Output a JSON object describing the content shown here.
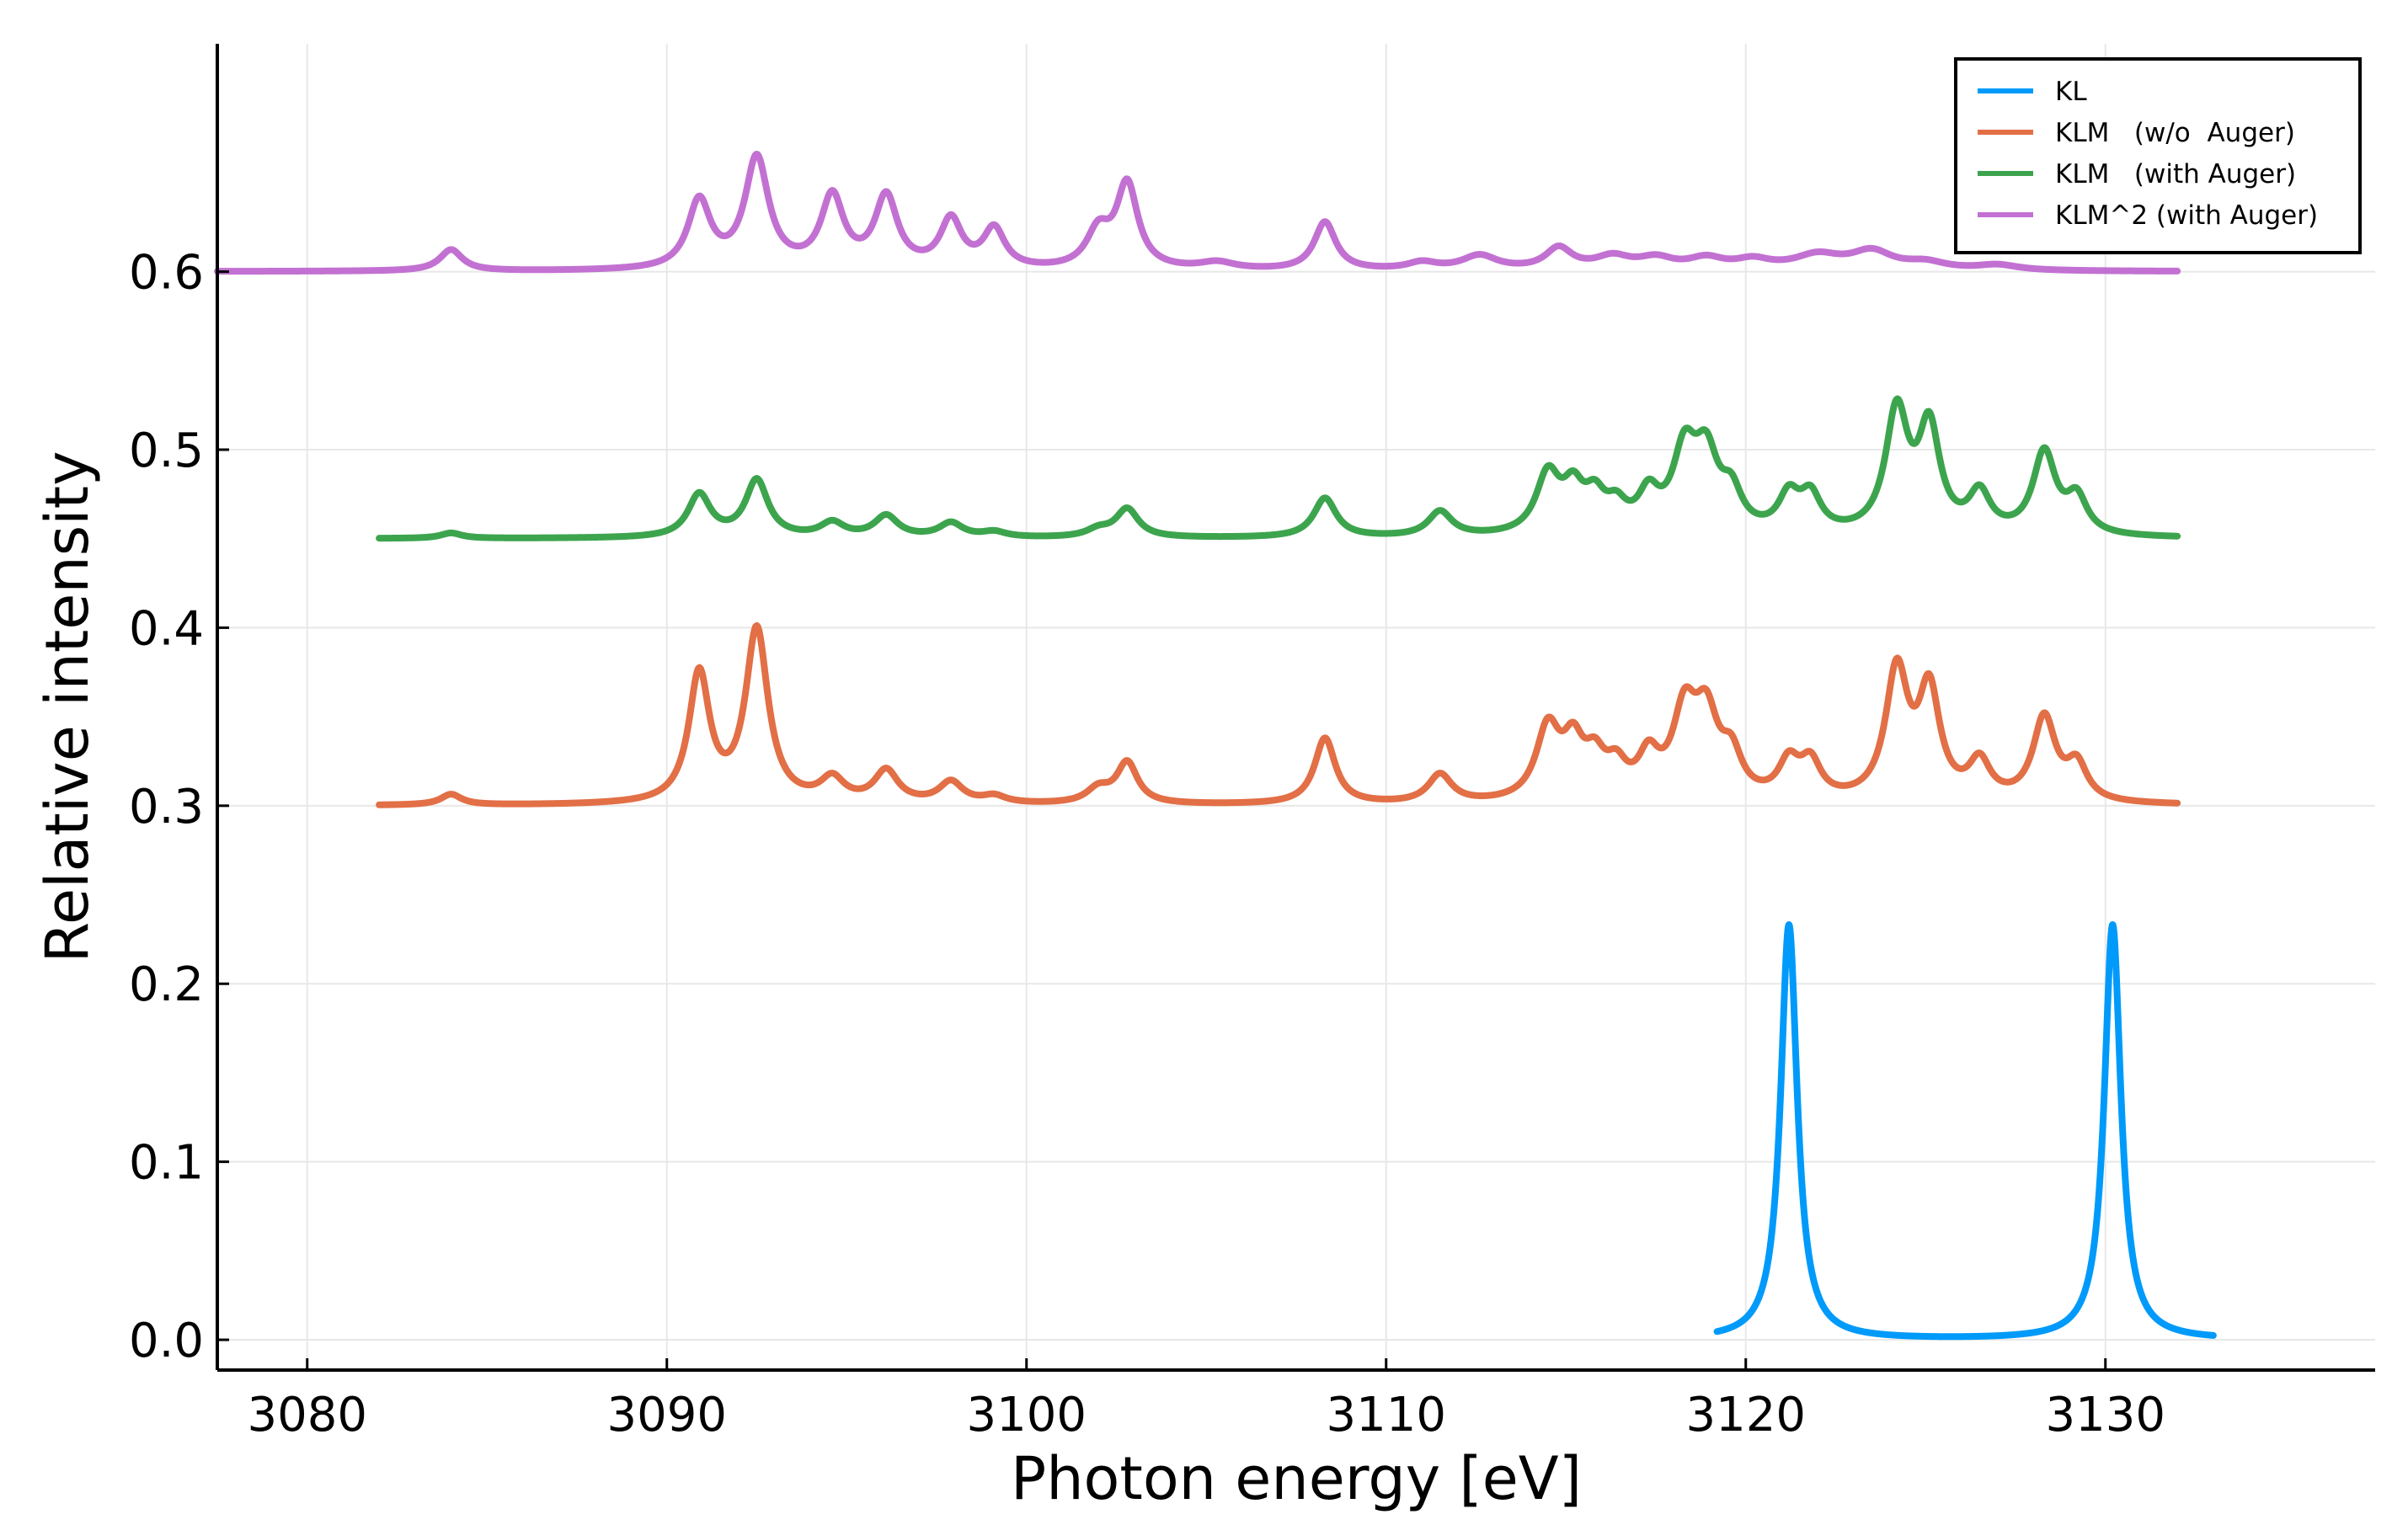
{
  "chart_data": {
    "type": "line",
    "title": "",
    "xlabel": "Photon energy [eV]",
    "ylabel": "Relative intensity",
    "xlim": [
      3077.5,
      3137.5
    ],
    "ylim": [
      -0.017,
      0.728
    ],
    "xticks": [
      3080,
      3090,
      3100,
      3110,
      3120,
      3130
    ],
    "yticks": [
      0.0,
      0.1,
      0.2,
      0.3,
      0.4,
      0.5,
      0.6
    ],
    "xtick_labels": [
      "3080",
      "3090",
      "3100",
      "3110",
      "3120",
      "3130"
    ],
    "ytick_labels": [
      "0.0",
      "0.1",
      "0.2",
      "0.3",
      "0.4",
      "0.5",
      "0.6"
    ],
    "grid": true,
    "legend_position": "top-right",
    "series": [
      {
        "name": "KL",
        "color": "#009AFA",
        "x_range": [
          3119.2,
          3133.0
        ],
        "baseline": 0.0,
        "peaks": [
          {
            "x": 3121.2,
            "y": 0.233,
            "w": 0.28
          },
          {
            "x": 3130.2,
            "y": 0.233,
            "w": 0.28
          }
        ]
      },
      {
        "name": "KLM   (w/o  Auger)",
        "color": "#E26F46",
        "x_range": [
          3082.0,
          3132.0
        ],
        "baseline": 0.3,
        "peaks": [
          {
            "x": 3084.0,
            "y": 0.006,
            "w": 0.35
          },
          {
            "x": 3090.9,
            "y": 0.072,
            "w": 0.35
          },
          {
            "x": 3092.5,
            "y": 0.097,
            "w": 0.38
          },
          {
            "x": 3094.6,
            "y": 0.013,
            "w": 0.4
          },
          {
            "x": 3096.1,
            "y": 0.018,
            "w": 0.4
          },
          {
            "x": 3097.9,
            "y": 0.012,
            "w": 0.4
          },
          {
            "x": 3099.1,
            "y": 0.004,
            "w": 0.4
          },
          {
            "x": 3102.0,
            "y": 0.008,
            "w": 0.4
          },
          {
            "x": 3102.8,
            "y": 0.023,
            "w": 0.35
          },
          {
            "x": 3108.3,
            "y": 0.037,
            "w": 0.35
          },
          {
            "x": 3111.5,
            "y": 0.016,
            "w": 0.4
          },
          {
            "x": 3114.5,
            "y": 0.04,
            "w": 0.4
          },
          {
            "x": 3115.2,
            "y": 0.028,
            "w": 0.35
          },
          {
            "x": 3115.8,
            "y": 0.02,
            "w": 0.35
          },
          {
            "x": 3116.4,
            "y": 0.016,
            "w": 0.35
          },
          {
            "x": 3117.3,
            "y": 0.022,
            "w": 0.35
          },
          {
            "x": 3118.3,
            "y": 0.046,
            "w": 0.4
          },
          {
            "x": 3118.9,
            "y": 0.043,
            "w": 0.4
          },
          {
            "x": 3119.6,
            "y": 0.022,
            "w": 0.35
          },
          {
            "x": 3121.2,
            "y": 0.02,
            "w": 0.35
          },
          {
            "x": 3121.8,
            "y": 0.02,
            "w": 0.35
          },
          {
            "x": 3124.2,
            "y": 0.072,
            "w": 0.38
          },
          {
            "x": 3125.1,
            "y": 0.06,
            "w": 0.36
          },
          {
            "x": 3126.5,
            "y": 0.021,
            "w": 0.36
          },
          {
            "x": 3128.3,
            "y": 0.047,
            "w": 0.38
          },
          {
            "x": 3129.2,
            "y": 0.02,
            "w": 0.35
          }
        ]
      },
      {
        "name": "KLM   (with Auger)",
        "color": "#3DA44E",
        "x_range": [
          3082.0,
          3132.0
        ],
        "baseline": 0.45,
        "peaks": [
          {
            "x": 3084.0,
            "y": 0.003,
            "w": 0.35
          },
          {
            "x": 3090.9,
            "y": 0.024,
            "w": 0.38
          },
          {
            "x": 3092.5,
            "y": 0.032,
            "w": 0.38
          },
          {
            "x": 3094.6,
            "y": 0.008,
            "w": 0.4
          },
          {
            "x": 3096.1,
            "y": 0.012,
            "w": 0.4
          },
          {
            "x": 3097.9,
            "y": 0.008,
            "w": 0.4
          },
          {
            "x": 3099.1,
            "y": 0.003,
            "w": 0.4
          },
          {
            "x": 3102.0,
            "y": 0.004,
            "w": 0.4
          },
          {
            "x": 3102.8,
            "y": 0.016,
            "w": 0.38
          },
          {
            "x": 3108.3,
            "y": 0.022,
            "w": 0.38
          },
          {
            "x": 3111.5,
            "y": 0.014,
            "w": 0.4
          },
          {
            "x": 3114.5,
            "y": 0.033,
            "w": 0.4
          },
          {
            "x": 3115.2,
            "y": 0.022,
            "w": 0.35
          },
          {
            "x": 3115.8,
            "y": 0.018,
            "w": 0.35
          },
          {
            "x": 3116.4,
            "y": 0.013,
            "w": 0.35
          },
          {
            "x": 3117.3,
            "y": 0.02,
            "w": 0.35
          },
          {
            "x": 3118.3,
            "y": 0.043,
            "w": 0.4
          },
          {
            "x": 3118.9,
            "y": 0.04,
            "w": 0.4
          },
          {
            "x": 3119.6,
            "y": 0.02,
            "w": 0.35
          },
          {
            "x": 3121.2,
            "y": 0.02,
            "w": 0.35
          },
          {
            "x": 3121.8,
            "y": 0.02,
            "w": 0.35
          },
          {
            "x": 3124.2,
            "y": 0.068,
            "w": 0.38
          },
          {
            "x": 3125.1,
            "y": 0.058,
            "w": 0.36
          },
          {
            "x": 3126.5,
            "y": 0.022,
            "w": 0.36
          },
          {
            "x": 3128.3,
            "y": 0.046,
            "w": 0.38
          },
          {
            "x": 3129.2,
            "y": 0.02,
            "w": 0.35
          }
        ]
      },
      {
        "name": "KLM^2 (with Auger)",
        "color": "#C271D2",
        "x_range": [
          3077.5,
          3132.0
        ],
        "baseline": 0.6,
        "peaks": [
          {
            "x": 3084.0,
            "y": 0.012,
            "w": 0.38
          },
          {
            "x": 3090.9,
            "y": 0.038,
            "w": 0.38
          },
          {
            "x": 3092.5,
            "y": 0.062,
            "w": 0.4
          },
          {
            "x": 3094.6,
            "y": 0.04,
            "w": 0.38
          },
          {
            "x": 3096.1,
            "y": 0.04,
            "w": 0.38
          },
          {
            "x": 3097.9,
            "y": 0.027,
            "w": 0.36
          },
          {
            "x": 3099.1,
            "y": 0.022,
            "w": 0.36
          },
          {
            "x": 3102.0,
            "y": 0.02,
            "w": 0.4
          },
          {
            "x": 3102.8,
            "y": 0.047,
            "w": 0.36
          },
          {
            "x": 3105.3,
            "y": 0.004,
            "w": 0.6
          },
          {
            "x": 3108.3,
            "y": 0.027,
            "w": 0.36
          },
          {
            "x": 3111.0,
            "y": 0.004,
            "w": 0.5
          },
          {
            "x": 3112.6,
            "y": 0.008,
            "w": 0.6
          },
          {
            "x": 3114.8,
            "y": 0.012,
            "w": 0.45
          },
          {
            "x": 3116.3,
            "y": 0.007,
            "w": 0.6
          },
          {
            "x": 3117.5,
            "y": 0.006,
            "w": 0.6
          },
          {
            "x": 3118.9,
            "y": 0.006,
            "w": 0.6
          },
          {
            "x": 3120.2,
            "y": 0.005,
            "w": 0.6
          },
          {
            "x": 3122.0,
            "y": 0.008,
            "w": 0.8
          },
          {
            "x": 3123.5,
            "y": 0.01,
            "w": 0.7
          },
          {
            "x": 3125.0,
            "y": 0.004,
            "w": 0.7
          },
          {
            "x": 3127.0,
            "y": 0.003,
            "w": 0.7
          }
        ]
      }
    ]
  }
}
